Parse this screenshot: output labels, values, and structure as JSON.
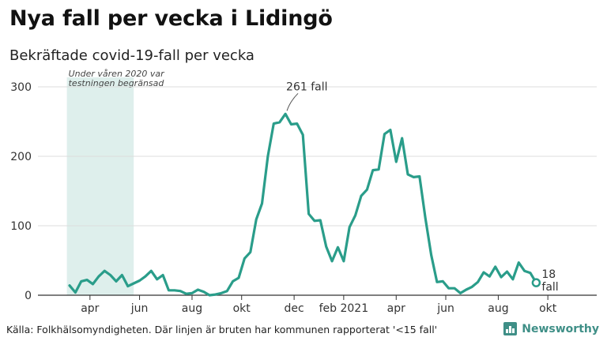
{
  "header": {
    "title": "Nya fall per vecka i Lidingö",
    "subtitle": "Bekräftade covid-19-fall per vecka"
  },
  "footer": {
    "source": "Källa: Folkhälsomyndigheten. Där linjen är bruten har kommunen rapporterat '<15 fall'",
    "brand": "Newsworthy"
  },
  "colors": {
    "line": "#2a9d8a",
    "shade": "#deefec",
    "brand": "#3f8f87"
  },
  "chart_data": {
    "type": "line",
    "title": "Nya fall per vecka i Lidingö",
    "subtitle": "Bekräftade covid-19-fall per vecka",
    "xlabel": "",
    "ylabel": "",
    "ylim": [
      0,
      300
    ],
    "yticks": [
      0,
      100,
      200,
      300
    ],
    "grid": true,
    "x_ticks": [
      {
        "label": "apr",
        "week": 3.5
      },
      {
        "label": "jun",
        "week": 12
      },
      {
        "label": "aug",
        "week": 21
      },
      {
        "label": "okt",
        "week": 29.5
      },
      {
        "label": "dec",
        "week": 38.5
      },
      {
        "label": "feb 2021",
        "week": 47
      },
      {
        "label": "apr",
        "week": 56
      },
      {
        "label": "jun",
        "week": 64.5
      },
      {
        "label": "aug",
        "week": 73.5
      },
      {
        "label": "okt",
        "week": 82
      }
    ],
    "shaded_region": {
      "x_start": -1,
      "x_end": 11,
      "label": "Under våren 2020 var testningen begränsad"
    },
    "series": [
      {
        "values": [
          14,
          4,
          20,
          22,
          16,
          27,
          35,
          29,
          20,
          29,
          13,
          17,
          21,
          27,
          35,
          23,
          29,
          7,
          7,
          6,
          2,
          3,
          8,
          5,
          0,
          1,
          3,
          6,
          20,
          25,
          53,
          62,
          109,
          132,
          200,
          247,
          249,
          261,
          246,
          247,
          231,
          117,
          107,
          108,
          70,
          49,
          69,
          49,
          98,
          115,
          143,
          152,
          180,
          181,
          232,
          238,
          192,
          226,
          174,
          170,
          171,
          111,
          58,
          19,
          20,
          10,
          10,
          3,
          8,
          12,
          19,
          33,
          27,
          41,
          26,
          34,
          23,
          47,
          35,
          32,
          18
        ]
      }
    ],
    "annotations": [
      {
        "text": "261 fall",
        "x": 37,
        "y": 261
      },
      {
        "text": "18 fall",
        "x": 80,
        "y": 18
      }
    ]
  }
}
